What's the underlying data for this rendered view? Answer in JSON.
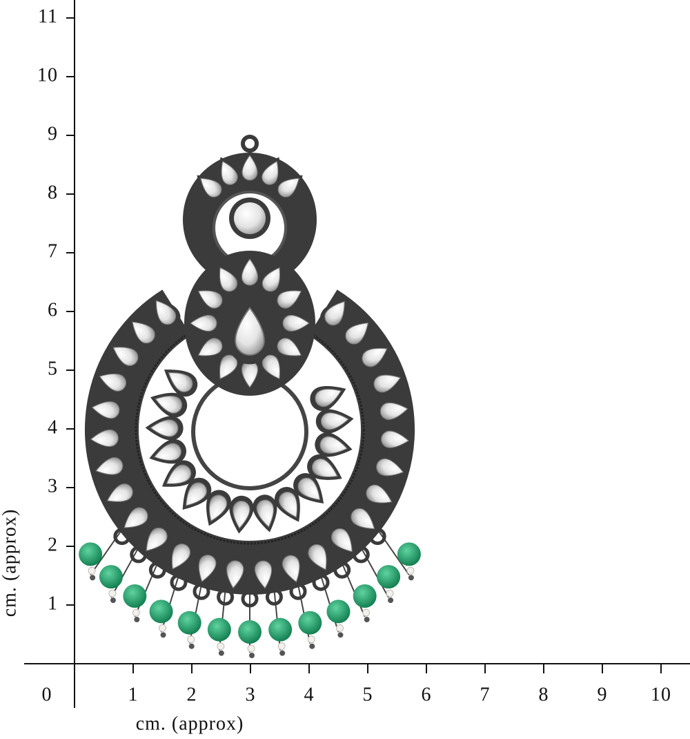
{
  "y_axis": {
    "title": "cm. (approx)",
    "ticks": [
      "1",
      "2",
      "3",
      "4",
      "5",
      "6",
      "7",
      "8",
      "9",
      "10",
      "11"
    ]
  },
  "x_axis": {
    "title": "cm. (approx)",
    "origin": "0",
    "ticks": [
      "1",
      "2",
      "3",
      "4",
      "5",
      "6",
      "7",
      "8",
      "9",
      "10"
    ]
  }
}
